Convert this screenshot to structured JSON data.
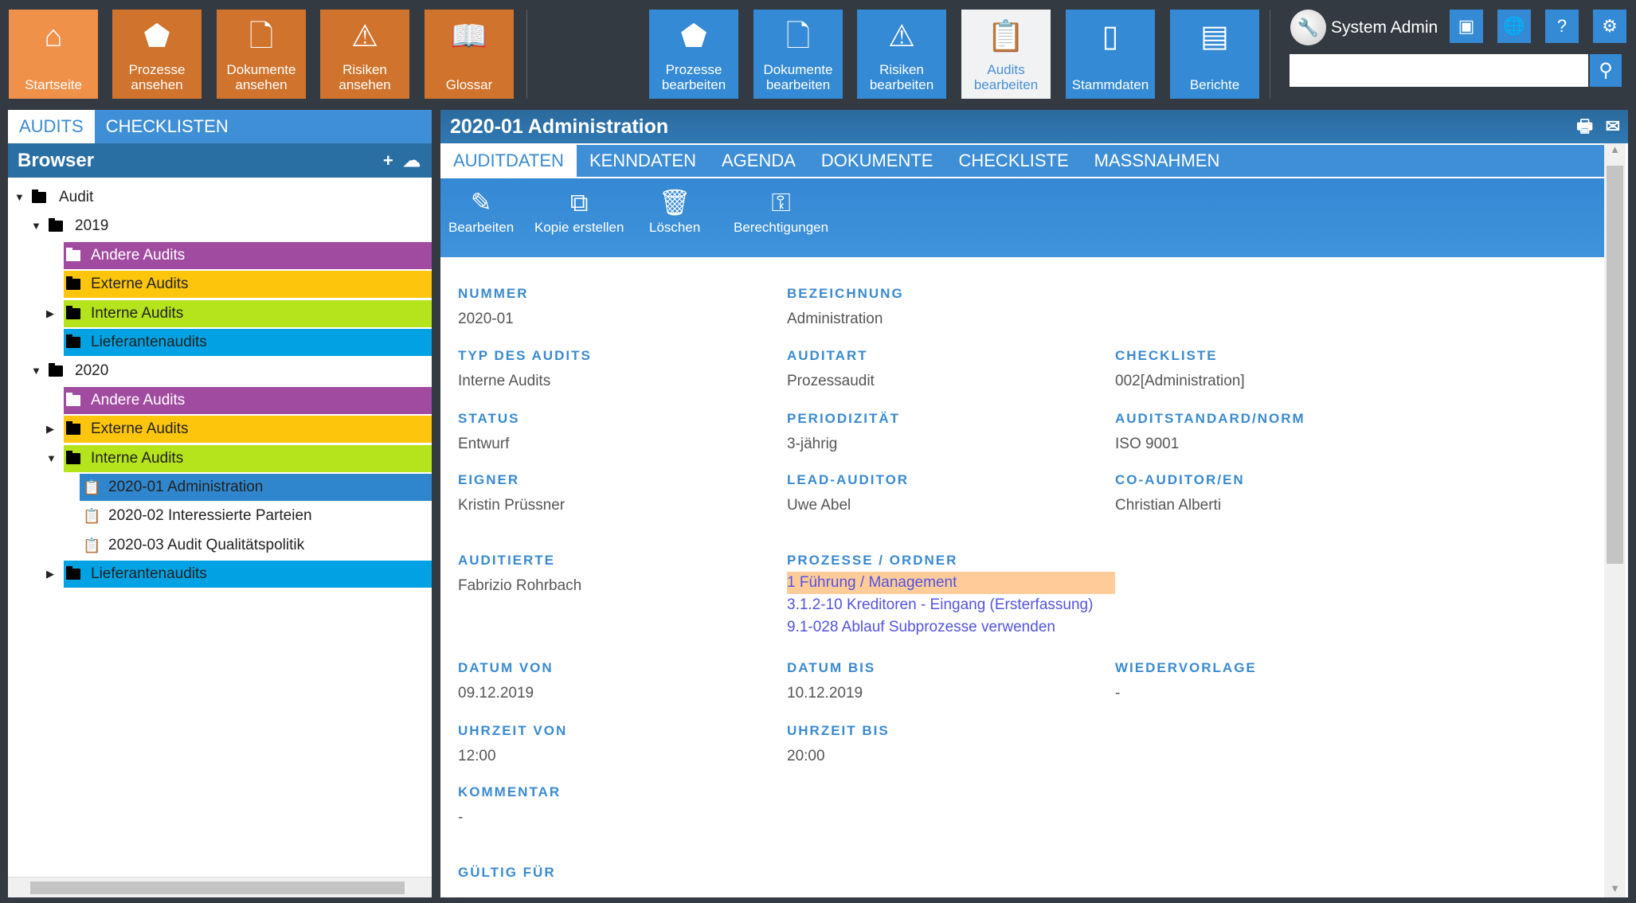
{
  "nav_view": [
    {
      "label": "Startseite",
      "icon": "home-icon",
      "glyph": "⌂"
    },
    {
      "label": "Prozesse ansehen",
      "icon": "process-icon",
      "glyph": "⬟"
    },
    {
      "label": "Dokumente ansehen",
      "icon": "document-icon",
      "glyph": "🗋"
    },
    {
      "label": "Risiken ansehen",
      "icon": "warning-icon",
      "glyph": "⚠"
    },
    {
      "label": "Glossar",
      "icon": "book-icon",
      "glyph": "📖"
    }
  ],
  "nav_edit": [
    {
      "label": "Prozesse bearbeiten",
      "icon": "process-edit-icon",
      "glyph": "⬟"
    },
    {
      "label": "Dokumente bearbeiten",
      "icon": "document-edit-icon",
      "glyph": "🗋"
    },
    {
      "label": "Risiken bearbeiten",
      "icon": "risk-edit-icon",
      "glyph": "⚠"
    },
    {
      "label": "Audits bearbeiten",
      "icon": "clipboard-check-icon",
      "glyph": "📋",
      "active": true
    },
    {
      "label": "Stammdaten",
      "icon": "binder-icon",
      "glyph": "▯"
    },
    {
      "label": "Berichte",
      "icon": "reports-icon",
      "glyph": "▤"
    }
  ],
  "user": {
    "name": "System Admin"
  },
  "header_icons": [
    {
      "icon": "contact-card-icon",
      "glyph": "▣"
    },
    {
      "icon": "globe-icon",
      "glyph": "🌐"
    },
    {
      "icon": "help-icon",
      "glyph": "?"
    },
    {
      "icon": "settings-gear-icon",
      "glyph": "⚙"
    }
  ],
  "search": {
    "value": "",
    "placeholder": ""
  },
  "left": {
    "tabs": [
      "AUDITS",
      "CHECKLISTEN"
    ],
    "browser_title": "Browser"
  },
  "tree": [
    {
      "label": "Audit",
      "level": 0,
      "toggle": "open",
      "type": "folder"
    },
    {
      "label": "2019",
      "level": 1,
      "toggle": "open",
      "type": "folder"
    },
    {
      "label": "Andere Audits",
      "level": 2,
      "type": "folder",
      "color": "#a04aa0",
      "white": true
    },
    {
      "label": "Externe Audits",
      "level": 2,
      "type": "folder",
      "color": "#fdc60c"
    },
    {
      "label": "Interne Audits",
      "level": 2,
      "toggle": "closed",
      "type": "folder",
      "color": "#b5e41c"
    },
    {
      "label": "Lieferantenaudits",
      "level": 2,
      "type": "folder",
      "color": "#00a2e3"
    },
    {
      "label": "2020",
      "level": 1,
      "toggle": "open",
      "type": "folder"
    },
    {
      "label": "Andere Audits",
      "level": 2,
      "type": "folder",
      "color": "#a04aa0",
      "white": true
    },
    {
      "label": "Externe Audits",
      "level": 2,
      "toggle": "closed",
      "type": "folder",
      "color": "#fdc60c"
    },
    {
      "label": "Interne Audits",
      "level": 2,
      "toggle": "open",
      "type": "folder",
      "color": "#b5e41c"
    },
    {
      "label": "2020-01 Administration",
      "level": 3,
      "type": "audit",
      "color": "#2f86cc",
      "selected": true
    },
    {
      "label": "2020-02 Interessierte Parteien",
      "level": 3,
      "type": "audit"
    },
    {
      "label": "2020-03 Audit Qualitätspolitik",
      "level": 3,
      "type": "audit"
    },
    {
      "label": "Lieferantenaudits",
      "level": 2,
      "toggle": "closed",
      "type": "folder",
      "color": "#00a2e3"
    }
  ],
  "detail": {
    "title": "2020-01 Administration",
    "tabs": [
      "AUDITDATEN",
      "KENNDATEN",
      "AGENDA",
      "DOKUMENTE",
      "CHECKLISTE",
      "MASSNAHMEN"
    ],
    "actions": [
      {
        "label": "Bearbeiten",
        "icon": "pencil-icon",
        "glyph": "✎"
      },
      {
        "label": "Kopie erstellen",
        "icon": "copy-icon",
        "glyph": "⧉"
      },
      {
        "label": "Löschen",
        "icon": "trash-icon",
        "glyph": "🗑"
      },
      {
        "label": "Berechtigungen",
        "icon": "key-icon",
        "glyph": "⚿"
      }
    ],
    "fields": [
      {
        "label": "NUMMER",
        "value": "2020-01",
        "col": 0,
        "row": 0
      },
      {
        "label": "BEZEICHNUNG",
        "value": "Administration",
        "col": 1,
        "row": 0
      },
      {
        "label": "TYP DES AUDITS",
        "value": "Interne Audits",
        "col": 0,
        "row": 1
      },
      {
        "label": "AUDITART",
        "value": "Prozessaudit",
        "col": 1,
        "row": 1
      },
      {
        "label": "CHECKLISTE",
        "value": "002[Administration]",
        "col": 2,
        "row": 1
      },
      {
        "label": "STATUS",
        "value": "Entwurf",
        "col": 0,
        "row": 2
      },
      {
        "label": "PERIODIZITÄT",
        "value": "3-jährig",
        "col": 1,
        "row": 2
      },
      {
        "label": "AUDITSTANDARD/NORM",
        "value": "ISO 9001",
        "col": 2,
        "row": 2
      },
      {
        "label": "EIGNER",
        "value": "Kristin Prüssner",
        "col": 0,
        "row": 3
      },
      {
        "label": "LEAD-AUDITOR",
        "value": "Uwe Abel",
        "col": 1,
        "row": 3
      },
      {
        "label": "CO-AUDITOR/EN",
        "value": "Christian Alberti",
        "col": 2,
        "row": 3
      },
      {
        "label": "AUDITIERTE",
        "value": "Fabrizio Rohrbach",
        "col": 0,
        "row": 4
      },
      {
        "label": "PROZESSE / ORDNER",
        "links": [
          "1 Führung / Management",
          "3.1.2-10 Kreditoren - Eingang (Ersterfassung)",
          "9.1-028 Ablauf Subprozesse verwenden"
        ],
        "col": 1,
        "row": 4
      },
      {
        "label": "DATUM VON",
        "value": "09.12.2019",
        "col": 0,
        "row": 5
      },
      {
        "label": "DATUM BIS",
        "value": "10.12.2019",
        "col": 1,
        "row": 5
      },
      {
        "label": "WIEDERVORLAGE",
        "value": "-",
        "col": 2,
        "row": 5
      },
      {
        "label": "UHRZEIT VON",
        "value": "12:00",
        "col": 0,
        "row": 6
      },
      {
        "label": "UHRZEIT BIS",
        "value": "20:00",
        "col": 1,
        "row": 6
      },
      {
        "label": "KOMMENTAR",
        "value": "-",
        "col": 0,
        "row": 7
      },
      {
        "label": "GÜLTIG FÜR",
        "value": "-",
        "col": 0,
        "row": 8
      }
    ]
  }
}
